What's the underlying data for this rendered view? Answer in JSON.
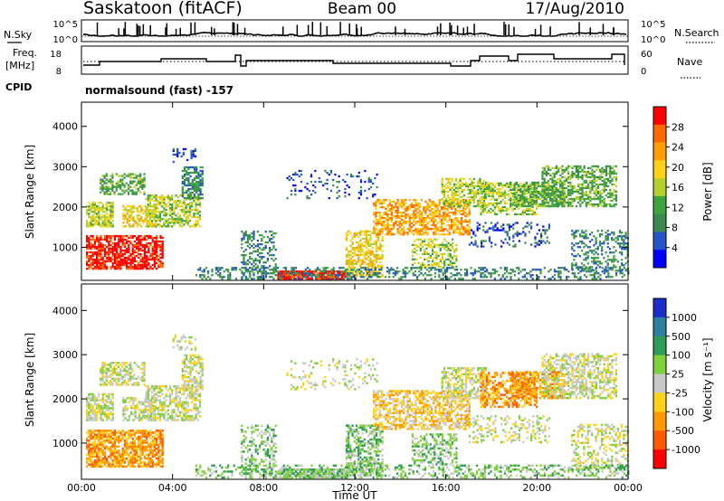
{
  "header": {
    "title": "Saskatoon (fitACF)",
    "beam": "Beam 00",
    "date": "17/Aug/2010"
  },
  "top_panels": {
    "nsky_label": "N.Sky",
    "nsky_ticks": [
      "10^5",
      "10^0"
    ],
    "nsearch_label": "N.Search",
    "nsearch_ticks": [
      "10^5",
      "10^0"
    ],
    "freq_label_1": "Freq.",
    "freq_label_2": "[MHz]",
    "freq_ticks": [
      "18",
      "8"
    ],
    "nave_label": "Nave",
    "nave_ticks": [
      "60",
      "0"
    ],
    "cpid_label": "CPID",
    "cpid_text": "normalsound (fast) -157"
  },
  "chart_data": [
    {
      "type": "heatmap",
      "name": "power",
      "ylabel": "Slant Range [km]",
      "yticks": [
        "4000",
        "3000",
        "2000",
        "1000"
      ],
      "ylim": [
        180,
        4600
      ],
      "colorbar_label": "Power [dB]",
      "colorbar_ticks": [
        "28",
        "24",
        "20",
        "16",
        "12",
        "8",
        "4"
      ],
      "colors": [
        "#0000ff",
        "#2255c8",
        "#3b8a4e",
        "#3fa33f",
        "#b6d02a",
        "#ffd21a",
        "#ffa000",
        "#ff6a00",
        "#ff0000"
      ]
    },
    {
      "type": "heatmap",
      "name": "velocity",
      "ylabel": "Slant Range [km]",
      "yticks": [
        "4000",
        "3000",
        "2000",
        "1000"
      ],
      "ylim": [
        180,
        4600
      ],
      "colorbar_label": "Velocity [m s⁻¹]",
      "colorbar_ticks": [
        "1000",
        "500",
        "100",
        "25",
        "-25",
        "-100",
        "-500",
        "-1000"
      ],
      "colors": [
        "#1a2fc8",
        "#2c7fa0",
        "#2e9b57",
        "#7fd03a",
        "#c8c8c8",
        "#ffd21a",
        "#ff9a00",
        "#ff5a00",
        "#ff0000"
      ]
    }
  ],
  "x_axis": {
    "ticks": [
      "00:00",
      "04:00",
      "08:00",
      "12:00",
      "16:00",
      "20:00",
      "00:00"
    ],
    "label": "Time UT"
  }
}
